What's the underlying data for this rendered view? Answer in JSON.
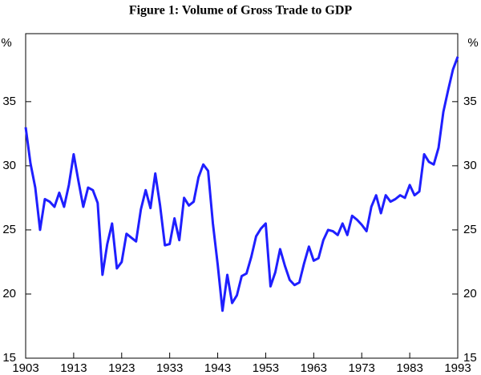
{
  "chart_data": {
    "type": "line",
    "title": "Figure 1: Volume of Gross Trade to GDP",
    "ylabel": "%",
    "y2label": "%",
    "x": [
      1903,
      1904,
      1905,
      1906,
      1907,
      1908,
      1909,
      1910,
      1911,
      1912,
      1913,
      1914,
      1915,
      1916,
      1917,
      1918,
      1919,
      1920,
      1921,
      1922,
      1923,
      1924,
      1925,
      1926,
      1927,
      1928,
      1929,
      1930,
      1931,
      1932,
      1933,
      1934,
      1935,
      1936,
      1937,
      1938,
      1939,
      1940,
      1941,
      1942,
      1943,
      1944,
      1945,
      1946,
      1947,
      1948,
      1949,
      1950,
      1951,
      1952,
      1953,
      1954,
      1955,
      1956,
      1957,
      1958,
      1959,
      1960,
      1961,
      1962,
      1963,
      1964,
      1965,
      1966,
      1967,
      1968,
      1969,
      1970,
      1971,
      1972,
      1973,
      1974,
      1975,
      1976,
      1977,
      1978,
      1979,
      1980,
      1981,
      1982,
      1983,
      1984,
      1985,
      1986,
      1987,
      1988,
      1989,
      1990,
      1991,
      1992,
      1993
    ],
    "series": [
      {
        "name": "Volume of Gross Trade to GDP",
        "color": "#1f1fff",
        "values": [
          33.0,
          30.2,
          28.3,
          25.0,
          27.4,
          27.2,
          26.8,
          27.9,
          26.8,
          28.5,
          30.9,
          28.8,
          26.8,
          28.3,
          28.1,
          27.1,
          21.5,
          23.9,
          25.5,
          22.0,
          22.5,
          24.7,
          24.4,
          24.1,
          26.6,
          28.1,
          26.7,
          29.4,
          26.9,
          23.8,
          23.9,
          25.9,
          24.2,
          27.5,
          26.9,
          27.2,
          29.1,
          30.1,
          29.6,
          25.5,
          22.3,
          18.7,
          21.5,
          19.3,
          19.9,
          21.4,
          21.6,
          22.9,
          24.5,
          25.1,
          25.5,
          20.6,
          21.7,
          23.5,
          22.2,
          21.1,
          20.7,
          20.9,
          22.4,
          23.7,
          22.6,
          22.8,
          24.2,
          25.0,
          24.9,
          24.6,
          25.5,
          24.6,
          26.1,
          25.8,
          25.4,
          24.9,
          26.8,
          27.7,
          26.3,
          27.7,
          27.2,
          27.4,
          27.7,
          27.5,
          28.5,
          27.7,
          28.0,
          30.9,
          30.3,
          30.1,
          31.4,
          34.2,
          35.9,
          37.5,
          38.5
        ]
      }
    ],
    "xlim": [
      1903,
      1993
    ],
    "xticks": [
      1903,
      1913,
      1923,
      1933,
      1943,
      1953,
      1963,
      1973,
      1983,
      1993
    ],
    "ylim": [
      15,
      40.3
    ],
    "yticks": [
      15,
      20,
      25,
      30,
      35
    ],
    "y2lim": [
      15,
      40.3
    ],
    "y2ticks": [
      15,
      20,
      25,
      30,
      35
    ]
  }
}
